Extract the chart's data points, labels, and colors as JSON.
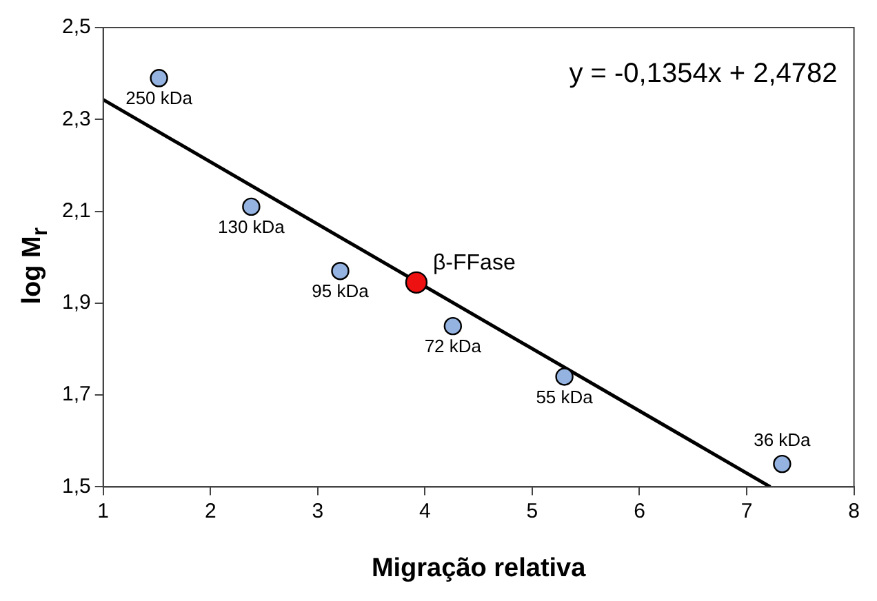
{
  "chart_data": {
    "type": "scatter",
    "xlabel": "Migração relativa",
    "ylabel": "log M$_{r}$",
    "xlim": [
      1,
      8
    ],
    "xticks": [
      1,
      2,
      3,
      4,
      5,
      6,
      7,
      8
    ],
    "ylim": [
      1.5,
      2.5
    ],
    "yticks": [
      {
        "value": 1.5,
        "label": "1,5"
      },
      {
        "value": 1.7,
        "label": "1,7"
      },
      {
        "value": 1.9,
        "label": "1,9"
      },
      {
        "value": 2.1,
        "label": "2,1"
      },
      {
        "value": 2.3,
        "label": "2,3"
      },
      {
        "value": 2.5,
        "label": "2,5"
      }
    ],
    "grid": false,
    "legend": false,
    "marker": "circle",
    "series": [
      {
        "type": "line",
        "color": "#000000",
        "x": [
          1,
          7.22
        ],
        "values": [
          2.343,
          1.5
        ],
        "marker": "none",
        "line_style": "solid"
      },
      {
        "color": "#95b3e0",
        "x": [
          1.52,
          2.38,
          3.21,
          4.26,
          5.3,
          7.33
        ],
        "values": [
          2.39,
          2.11,
          1.97,
          1.85,
          1.74,
          1.55
        ]
      },
      {
        "color": "#ee1111",
        "x": [
          3.92
        ],
        "values": [
          1.945
        ]
      }
    ],
    "annotations": [
      "y = -0,1354x + 2,4782",
      {
        "text": "250 kDa",
        "x": 1.52,
        "y": 2.39
      },
      {
        "text": "130 kDa",
        "x": 2.38,
        "y": 2.11
      },
      {
        "text": "95 kDa",
        "x": 3.21,
        "y": 1.97
      },
      {
        "text": "72 kDa",
        "x": 4.26,
        "y": 1.85
      },
      {
        "text": "55 kDa",
        "x": 5.3,
        "y": 1.74
      },
      {
        "text": "36 kDa",
        "x": 7.33,
        "y": 1.55
      },
      {
        "text": "β-FFase",
        "x": 3.92,
        "y": 1.945
      }
    ]
  }
}
